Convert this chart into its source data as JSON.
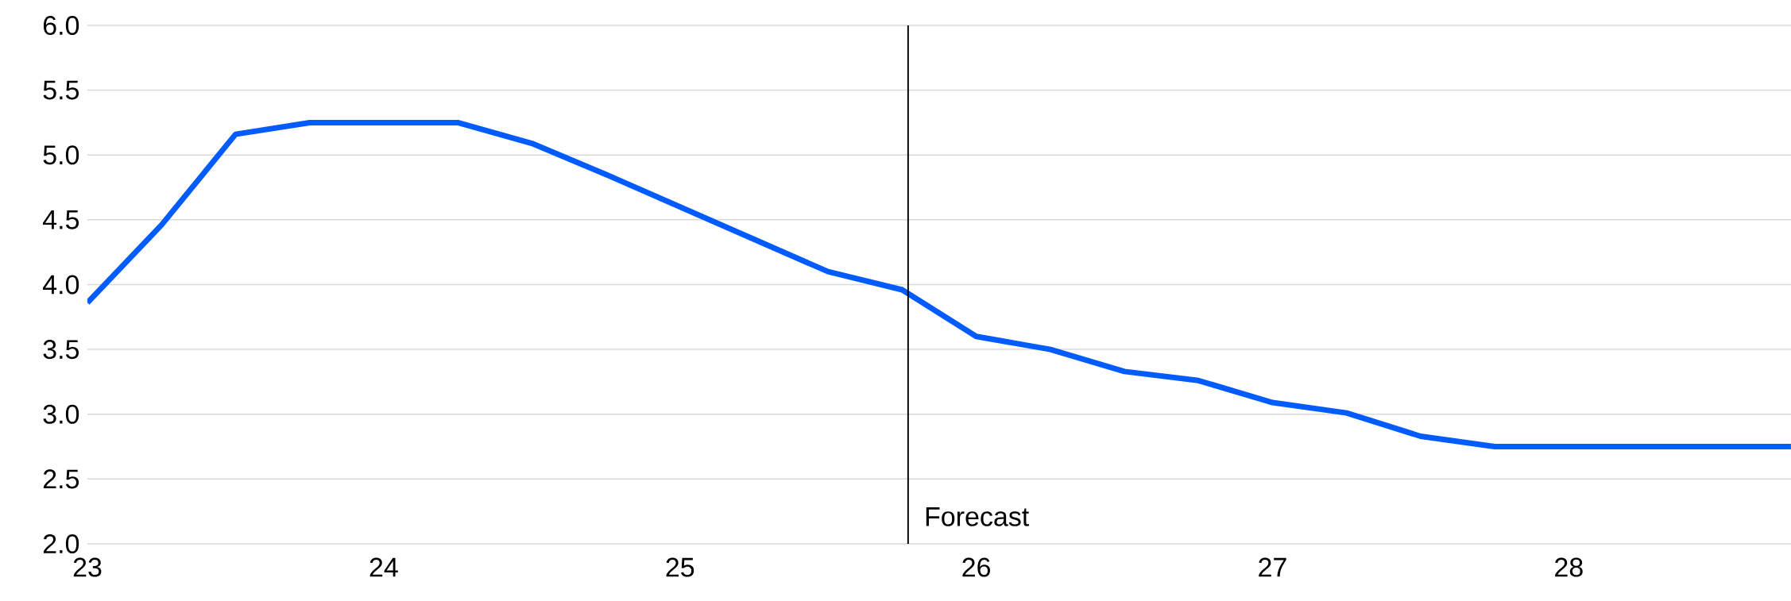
{
  "chart_data": {
    "type": "line",
    "x": [
      23,
      23.25,
      23.5,
      23.75,
      24,
      24.25,
      24.5,
      24.75,
      25,
      25.25,
      25.5,
      25.75,
      26,
      26.25,
      26.5,
      26.75,
      27,
      27.25,
      27.5,
      27.75,
      28,
      28.25,
      28.5,
      28.75
    ],
    "series": [
      {
        "color": "#005cff",
        "values": [
          3.86,
          4.46,
          5.16,
          5.25,
          5.25,
          5.25,
          5.09,
          4.85,
          4.6,
          4.35,
          4.1,
          3.96,
          3.6,
          3.5,
          3.33,
          3.26,
          3.09,
          3.01,
          2.83,
          2.75,
          2.75,
          2.75,
          2.75,
          2.75
        ]
      }
    ],
    "xlim": [
      23,
      28.75
    ],
    "xticks": [
      23,
      24,
      25,
      26,
      27,
      28
    ],
    "ylim": [
      2,
      6
    ],
    "yticks": [
      {
        "value": 2,
        "label": "2.0"
      },
      {
        "value": 2.5,
        "label": "2.5"
      },
      {
        "value": 3,
        "label": "3.0"
      },
      {
        "value": 3.5,
        "label": "3.5"
      },
      {
        "value": 4,
        "label": "4.0"
      },
      {
        "value": 4.5,
        "label": "4.5"
      },
      {
        "value": 5,
        "label": "5.0"
      },
      {
        "value": 5.5,
        "label": "5.5"
      },
      {
        "value": 6,
        "label": "6.0"
      }
    ],
    "ref_lines": [
      {
        "axis": "x",
        "value": 25.77,
        "label": "Forecast",
        "color": "#000000",
        "line_style": "solid"
      }
    ],
    "grid": "y",
    "marker": "none",
    "line_style": "solid"
  }
}
